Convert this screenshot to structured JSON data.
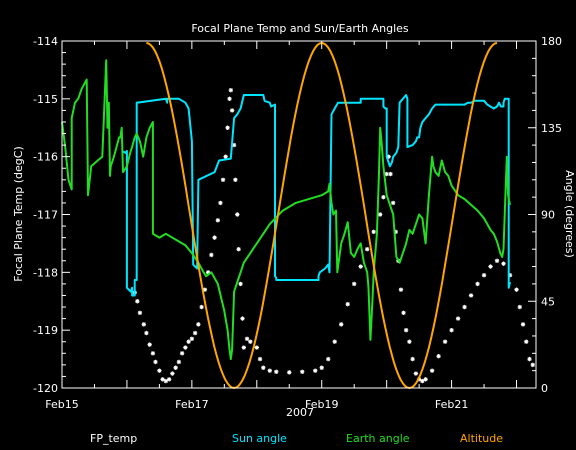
{
  "chart_data": {
    "type": "line",
    "title": "Focal Plane Temp and Sun/Earth Angles",
    "xlabel": "2007",
    "ylabel": "Focal Plane Temp (degC)",
    "y2label": "Angle (degrees)",
    "xlim": [
      0,
      7.3
    ],
    "ylim": [
      -120,
      -114
    ],
    "y2lim": [
      0,
      180
    ],
    "grid": false,
    "x_ticks": [
      {
        "x": 0,
        "label": "Feb15"
      },
      {
        "x": 2,
        "label": "Feb17"
      },
      {
        "x": 4,
        "label": "Feb19"
      },
      {
        "x": 6,
        "label": "Feb21"
      }
    ],
    "y_ticks": [
      -114,
      -115,
      -116,
      -117,
      -118,
      -119,
      -120
    ],
    "y2_ticks": [
      0,
      45,
      90,
      135,
      180
    ],
    "legend_position": "bottom",
    "colors": {
      "background": "#000000",
      "axes": "#ffffff",
      "fp_temp": "#ffffff",
      "sun_angle": "#00e5ff",
      "earth_angle": "#22dd22",
      "altitude": "#ffa500"
    },
    "series": [
      {
        "name": "FP_temp",
        "axis": "left",
        "style": "markers",
        "points": [
          [
            1.12,
            -118.35
          ],
          [
            1.16,
            -118.5
          ],
          [
            1.2,
            -118.7
          ],
          [
            1.26,
            -118.9
          ],
          [
            1.3,
            -119.05
          ],
          [
            1.35,
            -119.25
          ],
          [
            1.4,
            -119.4
          ],
          [
            1.44,
            -119.55
          ],
          [
            1.5,
            -119.7
          ],
          [
            1.55,
            -119.85
          ],
          [
            1.6,
            -119.88
          ],
          [
            1.65,
            -119.85
          ],
          [
            1.7,
            -119.75
          ],
          [
            1.75,
            -119.65
          ],
          [
            1.8,
            -119.55
          ],
          [
            1.85,
            -119.4
          ],
          [
            1.9,
            -119.3
          ],
          [
            1.95,
            -119.2
          ],
          [
            2.0,
            -119.15
          ],
          [
            2.05,
            -119.05
          ],
          [
            2.1,
            -118.9
          ],
          [
            2.15,
            -118.6
          ],
          [
            2.2,
            -118.3
          ],
          [
            2.25,
            -118.0
          ],
          [
            2.3,
            -117.7
          ],
          [
            2.35,
            -117.4
          ],
          [
            2.4,
            -117.1
          ],
          [
            2.44,
            -116.8
          ],
          [
            2.48,
            -116.4
          ],
          [
            2.52,
            -116.0
          ],
          [
            2.55,
            -115.5
          ],
          [
            2.58,
            -115.0
          ],
          [
            2.6,
            -114.85
          ],
          [
            2.62,
            -115.2
          ],
          [
            2.65,
            -115.8
          ],
          [
            2.67,
            -116.4
          ],
          [
            2.7,
            -117.0
          ],
          [
            2.72,
            -117.6
          ],
          [
            2.75,
            -118.2
          ],
          [
            2.78,
            -118.8
          ],
          [
            2.8,
            -119.3
          ],
          [
            2.85,
            -119.15
          ],
          [
            2.9,
            -119.2
          ],
          [
            3.0,
            -119.3
          ],
          [
            3.05,
            -119.5
          ],
          [
            3.1,
            -119.65
          ],
          [
            3.2,
            -119.7
          ],
          [
            3.3,
            -119.72
          ],
          [
            3.5,
            -119.73
          ],
          [
            3.7,
            -119.72
          ],
          [
            3.9,
            -119.7
          ],
          [
            4.0,
            -119.65
          ],
          [
            4.1,
            -119.5
          ],
          [
            4.2,
            -119.2
          ],
          [
            4.3,
            -118.9
          ],
          [
            4.4,
            -118.55
          ],
          [
            4.5,
            -118.2
          ],
          [
            4.6,
            -117.9
          ],
          [
            4.7,
            -117.6
          ],
          [
            4.8,
            -117.3
          ],
          [
            4.9,
            -117.0
          ],
          [
            4.95,
            -116.7
          ],
          [
            5.0,
            -116.3
          ],
          [
            5.03,
            -116.0
          ],
          [
            5.06,
            -116.3
          ],
          [
            5.1,
            -116.8
          ],
          [
            5.14,
            -117.3
          ],
          [
            5.18,
            -117.8
          ],
          [
            5.22,
            -118.3
          ],
          [
            5.26,
            -118.7
          ],
          [
            5.3,
            -119.0
          ],
          [
            5.35,
            -119.2
          ],
          [
            5.4,
            -119.5
          ],
          [
            5.45,
            -119.75
          ],
          [
            5.5,
            -119.85
          ],
          [
            5.55,
            -119.88
          ],
          [
            5.6,
            -119.85
          ],
          [
            5.7,
            -119.7
          ],
          [
            5.8,
            -119.45
          ],
          [
            5.9,
            -119.2
          ],
          [
            6.0,
            -119.0
          ],
          [
            6.1,
            -118.8
          ],
          [
            6.2,
            -118.6
          ],
          [
            6.3,
            -118.4
          ],
          [
            6.4,
            -118.2
          ],
          [
            6.5,
            -118.05
          ],
          [
            6.6,
            -117.9
          ],
          [
            6.7,
            -117.8
          ],
          [
            6.8,
            -117.85
          ],
          [
            6.9,
            -118.05
          ],
          [
            7.0,
            -118.3
          ],
          [
            7.05,
            -118.6
          ],
          [
            7.1,
            -118.9
          ],
          [
            7.15,
            -119.2
          ],
          [
            7.2,
            -119.5
          ],
          [
            7.25,
            -119.6
          ]
        ]
      },
      {
        "name": "Sun angle",
        "axis": "right",
        "style": "line",
        "points": [
          [
            0.92,
            123
          ],
          [
            0.98,
            122
          ],
          [
            1.0,
            123
          ],
          [
            1.0,
            52
          ],
          [
            1.06,
            50
          ],
          [
            1.08,
            52
          ],
          [
            1.08,
            48
          ],
          [
            1.12,
            48
          ],
          [
            1.12,
            56
          ],
          [
            1.15,
            56
          ],
          [
            1.15,
            148
          ],
          [
            1.6,
            150
          ],
          [
            1.62,
            148
          ],
          [
            1.62,
            150
          ],
          [
            1.8,
            150
          ],
          [
            1.9,
            148
          ],
          [
            1.95,
            145
          ],
          [
            2.0,
            128
          ],
          [
            2.02,
            64
          ],
          [
            2.08,
            62
          ],
          [
            2.1,
            108
          ],
          [
            2.35,
            112
          ],
          [
            2.42,
            118
          ],
          [
            2.6,
            119
          ],
          [
            2.65,
            140
          ],
          [
            2.7,
            142
          ],
          [
            2.75,
            145
          ],
          [
            2.8,
            152
          ],
          [
            3.1,
            152
          ],
          [
            3.12,
            149
          ],
          [
            3.2,
            148
          ],
          [
            3.22,
            146
          ],
          [
            3.28,
            147
          ],
          [
            3.28,
            58
          ],
          [
            3.3,
            57
          ],
          [
            3.3,
            56
          ],
          [
            3.95,
            56
          ],
          [
            3.95,
            58
          ],
          [
            3.97,
            60
          ],
          [
            4.05,
            62
          ],
          [
            4.1,
            64
          ],
          [
            4.12,
            60
          ],
          [
            4.15,
            142
          ],
          [
            4.2,
            145
          ],
          [
            4.25,
            148
          ],
          [
            4.6,
            148
          ],
          [
            4.6,
            150
          ],
          [
            4.95,
            150
          ],
          [
            4.95,
            146
          ],
          [
            4.98,
            145
          ],
          [
            5.0,
            145
          ],
          [
            5.0,
            120
          ],
          [
            5.05,
            115
          ],
          [
            5.08,
            117
          ],
          [
            5.1,
            120
          ],
          [
            5.15,
            122
          ],
          [
            5.18,
            125
          ],
          [
            5.2,
            148
          ],
          [
            5.3,
            152
          ],
          [
            5.32,
            150
          ],
          [
            5.32,
            125
          ],
          [
            5.4,
            126
          ],
          [
            5.45,
            128
          ],
          [
            5.47,
            130
          ],
          [
            5.5,
            130
          ],
          [
            5.52,
            135
          ],
          [
            5.55,
            138
          ],
          [
            5.6,
            140
          ],
          [
            5.65,
            142
          ],
          [
            5.7,
            145
          ],
          [
            5.75,
            147
          ],
          [
            6.2,
            147
          ],
          [
            6.25,
            148
          ],
          [
            6.3,
            148
          ],
          [
            6.35,
            149
          ],
          [
            6.5,
            149
          ],
          [
            6.55,
            147
          ],
          [
            6.65,
            145
          ],
          [
            6.7,
            146
          ],
          [
            6.73,
            148
          ],
          [
            6.76,
            146
          ],
          [
            6.8,
            146
          ],
          [
            6.8,
            148
          ],
          [
            6.82,
            150
          ],
          [
            6.88,
            150
          ],
          [
            6.88,
            52
          ],
          [
            6.9,
            55
          ]
        ]
      },
      {
        "name": "Earth angle",
        "axis": "right",
        "style": "line",
        "points": [
          [
            0.0,
            138
          ],
          [
            0.05,
            125
          ],
          [
            0.1,
            108
          ],
          [
            0.15,
            103
          ],
          [
            0.15,
            140
          ],
          [
            0.2,
            148
          ],
          [
            0.25,
            150
          ],
          [
            0.3,
            155
          ],
          [
            0.38,
            160
          ],
          [
            0.4,
            100
          ],
          [
            0.45,
            115
          ],
          [
            0.55,
            118
          ],
          [
            0.62,
            120
          ],
          [
            0.68,
            170
          ],
          [
            0.7,
            135
          ],
          [
            0.72,
            148
          ],
          [
            0.74,
            110
          ],
          [
            0.75,
            115
          ],
          [
            0.8,
            120
          ],
          [
            0.88,
            130
          ],
          [
            0.9,
            130
          ],
          [
            0.92,
            135
          ],
          [
            0.94,
            112
          ],
          [
            1.0,
            115
          ],
          [
            1.05,
            122
          ],
          [
            1.08,
            125
          ],
          [
            1.12,
            130
          ],
          [
            1.15,
            132
          ],
          [
            1.2,
            128
          ],
          [
            1.22,
            125
          ],
          [
            1.25,
            120
          ],
          [
            1.3,
            130
          ],
          [
            1.35,
            135
          ],
          [
            1.4,
            138
          ],
          [
            1.4,
            80
          ],
          [
            1.5,
            78
          ],
          [
            1.6,
            80
          ],
          [
            1.8,
            76
          ],
          [
            1.9,
            74
          ],
          [
            2.0,
            70
          ],
          [
            2.1,
            65
          ],
          [
            2.18,
            60
          ],
          [
            2.22,
            58
          ],
          [
            2.3,
            60
          ],
          [
            2.4,
            54
          ],
          [
            2.5,
            40
          ],
          [
            2.55,
            30
          ],
          [
            2.58,
            20
          ],
          [
            2.6,
            15
          ],
          [
            2.62,
            20
          ],
          [
            2.65,
            50
          ],
          [
            2.7,
            55
          ],
          [
            2.75,
            60
          ],
          [
            2.8,
            65
          ],
          [
            2.9,
            70
          ],
          [
            3.0,
            75
          ],
          [
            3.2,
            85
          ],
          [
            3.4,
            92
          ],
          [
            3.6,
            96
          ],
          [
            3.8,
            98
          ],
          [
            4.0,
            100
          ],
          [
            4.1,
            102
          ],
          [
            4.12,
            106
          ],
          [
            4.15,
            96
          ],
          [
            4.18,
            90
          ],
          [
            4.22,
            92
          ],
          [
            4.24,
            60
          ],
          [
            4.3,
            75
          ],
          [
            4.35,
            80
          ],
          [
            4.4,
            86
          ],
          [
            4.45,
            70
          ],
          [
            4.5,
            68
          ],
          [
            4.55,
            72
          ],
          [
            4.6,
            75
          ],
          [
            4.65,
            65
          ],
          [
            4.7,
            60
          ],
          [
            4.72,
            52
          ],
          [
            4.75,
            25
          ],
          [
            4.78,
            45
          ],
          [
            4.8,
            60
          ],
          [
            4.85,
            80
          ],
          [
            4.88,
            110
          ],
          [
            4.9,
            135
          ],
          [
            4.92,
            128
          ],
          [
            4.95,
            115
          ],
          [
            5.0,
            100
          ],
          [
            5.1,
            90
          ],
          [
            5.15,
            68
          ],
          [
            5.2,
            65
          ],
          [
            5.25,
            70
          ],
          [
            5.3,
            75
          ],
          [
            5.35,
            82
          ],
          [
            5.4,
            80
          ],
          [
            5.45,
            85
          ],
          [
            5.5,
            90
          ],
          [
            5.55,
            88
          ],
          [
            5.6,
            75
          ],
          [
            5.65,
            100
          ],
          [
            5.7,
            120
          ],
          [
            5.72,
            115
          ],
          [
            5.75,
            112
          ],
          [
            5.8,
            110
          ],
          [
            5.85,
            118
          ],
          [
            5.9,
            112
          ],
          [
            5.95,
            110
          ],
          [
            6.0,
            105
          ],
          [
            6.1,
            100
          ],
          [
            6.2,
            98
          ],
          [
            6.3,
            95
          ],
          [
            6.4,
            92
          ],
          [
            6.5,
            88
          ],
          [
            6.55,
            85
          ],
          [
            6.6,
            82
          ],
          [
            6.65,
            80
          ],
          [
            6.7,
            76
          ],
          [
            6.75,
            70
          ],
          [
            6.78,
            68
          ],
          [
            6.8,
            72
          ],
          [
            6.85,
            120
          ],
          [
            6.87,
            100
          ],
          [
            6.9,
            95
          ]
        ]
      },
      {
        "name": "Altitude",
        "axis": "right",
        "style": "line",
        "points": [
          [
            1.3,
            0
          ],
          [
            1.3,
            179
          ],
          [
            2.65,
            0
          ],
          [
            4.0,
            179
          ],
          [
            5.35,
            0
          ],
          [
            6.7,
            179
          ]
        ]
      }
    ]
  }
}
